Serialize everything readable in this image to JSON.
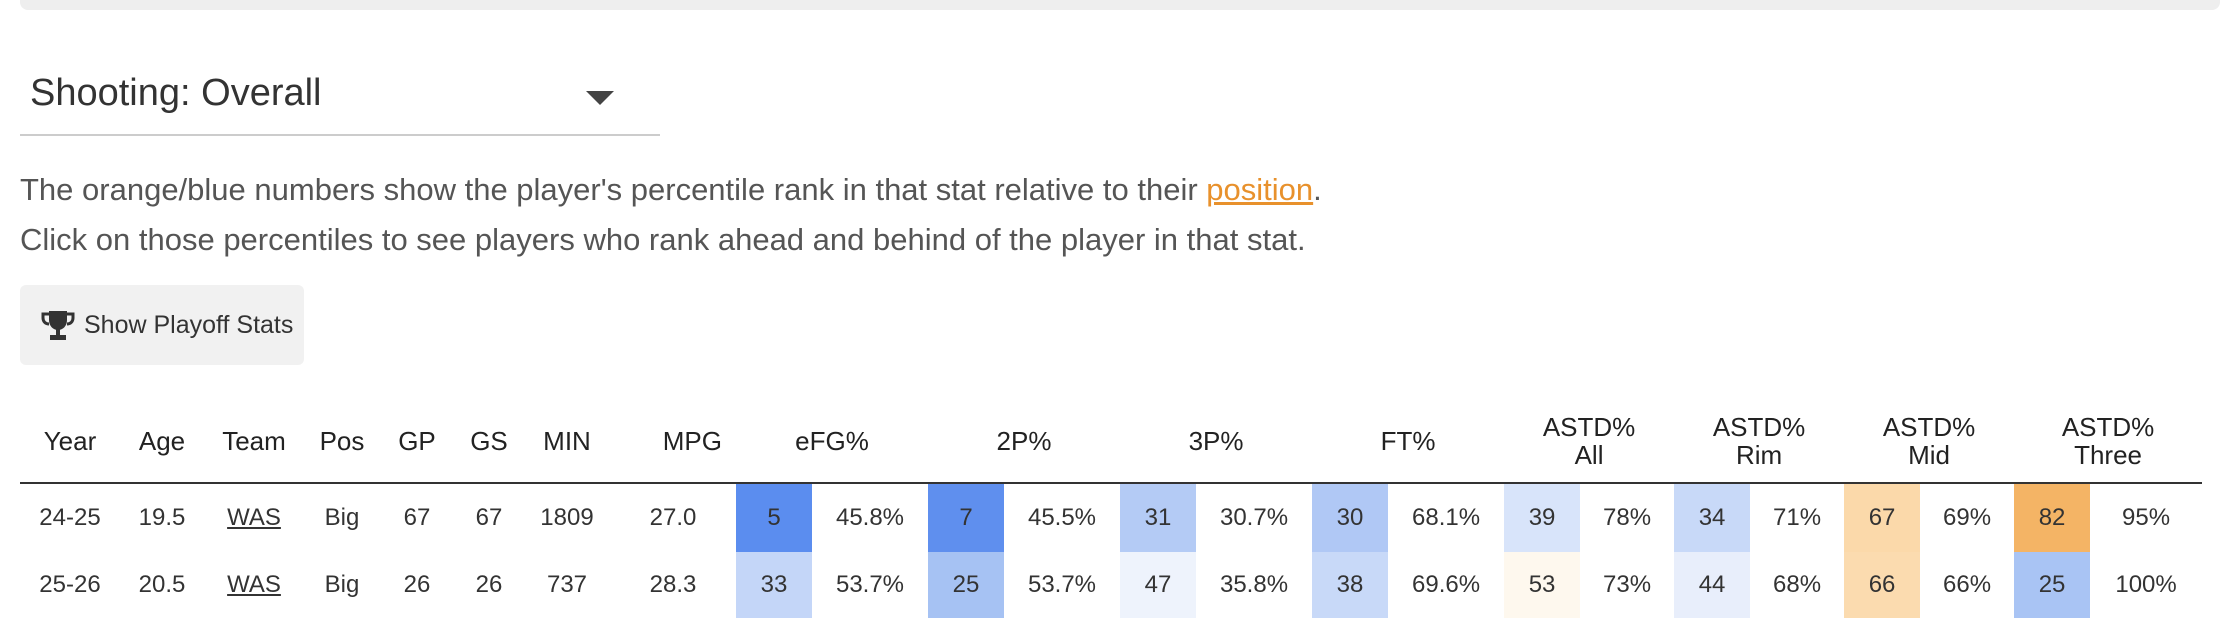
{
  "selector": {
    "value": "Shooting: Overall"
  },
  "note": {
    "line1_before": "The orange/blue numbers show the player's percentile rank in that stat relative to their ",
    "line1_link": "position",
    "line1_after": ".",
    "line2": "Click on those percentiles to see players who rank ahead and behind of the player in that stat."
  },
  "playoff_button": {
    "label": "Show Playoff Stats",
    "icon": "trophy-icon"
  },
  "table": {
    "headers": {
      "year": "Year",
      "age": "Age",
      "team": "Team",
      "pos": "Pos",
      "gp": "GP",
      "gs": "GS",
      "min": "MIN",
      "mpg": "MPG",
      "efg": "eFG%",
      "p2": "2P%",
      "p3": "3P%",
      "ft": "FT%",
      "astd_all_1": "ASTD%",
      "astd_all_2": "All",
      "astd_rim_1": "ASTD%",
      "astd_rim_2": "Rim",
      "astd_mid_1": "ASTD%",
      "astd_mid_2": "Mid",
      "astd_three_1": "ASTD%",
      "astd_three_2": "Three"
    },
    "rows": [
      {
        "year": "24-25",
        "age": "19.5",
        "team": "WAS",
        "pos": "Big",
        "gp": "67",
        "gs": "67",
        "min": "1809",
        "mpg": "27.0",
        "efg_pct": "5",
        "efg": "45.8%",
        "p2_pct": "7",
        "p2": "45.5%",
        "p3_pct": "31",
        "p3": "30.7%",
        "ft_pct": "30",
        "ft": "68.1%",
        "astd_all_pct": "39",
        "astd_all": "78%",
        "astd_rim_pct": "34",
        "astd_rim": "71%",
        "astd_mid_pct": "67",
        "astd_mid": "69%",
        "astd_three_pct": "82",
        "astd_three": "95%"
      },
      {
        "year": "25-26",
        "age": "20.5",
        "team": "WAS",
        "pos": "Big",
        "gp": "26",
        "gs": "26",
        "min": "737",
        "mpg": "28.3",
        "efg_pct": "33",
        "efg": "53.7%",
        "p2_pct": "25",
        "p2": "53.7%",
        "p3_pct": "47",
        "p3": "35.8%",
        "ft_pct": "38",
        "ft": "69.6%",
        "astd_all_pct": "53",
        "astd_all": "73%",
        "astd_rim_pct": "44",
        "astd_rim": "68%",
        "astd_mid_pct": "66",
        "astd_mid": "66%",
        "astd_three_pct": "25",
        "astd_three": "100%"
      }
    ]
  },
  "percentile_colors": {
    "row0": {
      "efg_pct": "#5b8def",
      "p2_pct": "#5f8fee",
      "p3_pct": "#b4cbf5",
      "ft_pct": "#b0c8f5",
      "astd_all_pct": "#d8e4fa",
      "astd_rim_pct": "#c8d9f8",
      "astd_mid_pct": "#fbd9aa",
      "astd_three_pct": "#f4b465"
    },
    "row1": {
      "efg_pct": "#c4d6f8",
      "p2_pct": "#a6c2f3",
      "p3_pct": "#eef3fc",
      "ft_pct": "#c8d9f8",
      "astd_all_pct": "#fef8ee",
      "astd_rim_pct": "#e8eefb",
      "astd_mid_pct": "#fbdbaf",
      "astd_three_pct": "#a9c4f4"
    }
  }
}
